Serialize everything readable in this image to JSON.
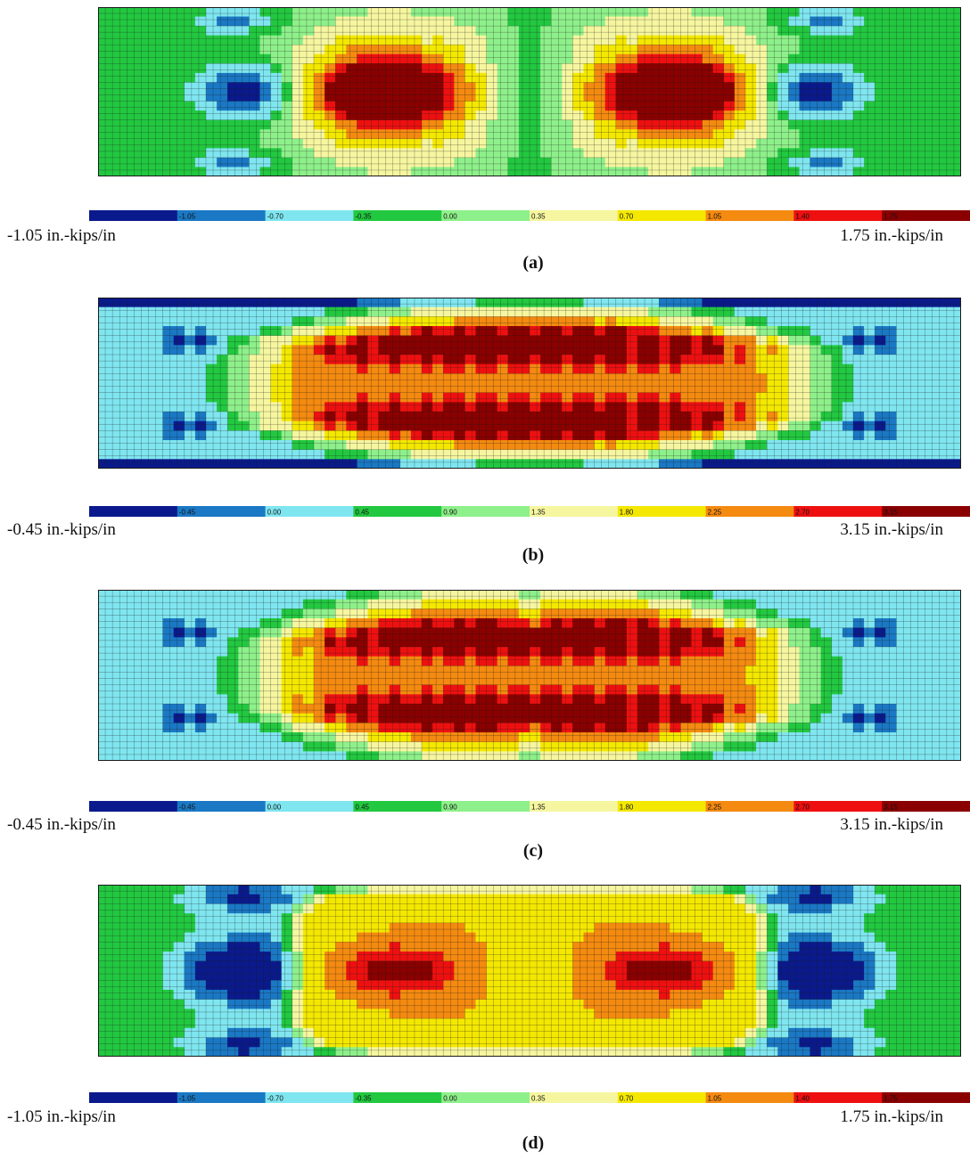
{
  "palette": [
    "#0a1a8c",
    "#1a78c4",
    "#7fe6f0",
    "#22c840",
    "#8ef08a",
    "#f6f6a0",
    "#f4e800",
    "#f48a10",
    "#ee1010",
    "#8a0000"
  ],
  "grid_color": "#1a1a1a",
  "chart_data": [
    {
      "type": "heatmap",
      "panel_label": "(a)",
      "colorbar_ticks": [
        "-1.05",
        "-0.70",
        "-0.35",
        "0.00",
        "0.35",
        "0.70",
        "1.05",
        "1.40",
        "1.75"
      ],
      "range_min_label": "-1.05 in.-kips/in",
      "range_max_label": "1.75 in.-kips/in",
      "vmin": -1.05,
      "vmax": 1.75,
      "pattern": "a"
    },
    {
      "type": "heatmap",
      "panel_label": "(b)",
      "colorbar_ticks": [
        "-0.45",
        "0.00",
        "0.45",
        "0.90",
        "1.35",
        "1.80",
        "2.25",
        "2.70",
        "3.15"
      ],
      "range_min_label": "-0.45 in.-kips/in",
      "range_max_label": "3.15 in.-kips/in",
      "vmin": -0.45,
      "vmax": 3.15,
      "pattern": "b"
    },
    {
      "type": "heatmap",
      "panel_label": "(c)",
      "colorbar_ticks": [
        "-0.45",
        "0.00",
        "0.45",
        "0.90",
        "1.35",
        "1.80",
        "2.25",
        "2.70",
        "3.15"
      ],
      "range_min_label": "-0.45 in.-kips/in",
      "range_max_label": "3.15 in.-kips/in",
      "vmin": -0.45,
      "vmax": 3.15,
      "pattern": "c"
    },
    {
      "type": "heatmap",
      "panel_label": "(d)",
      "colorbar_ticks": [
        "-1.05",
        "-0.70",
        "-0.35",
        "0.00",
        "0.35",
        "0.70",
        "1.05",
        "1.40",
        "1.75"
      ],
      "range_min_label": "-1.05 in.-kips/in",
      "range_max_label": "1.75 in.-kips/in",
      "vmin": -1.05,
      "vmax": 1.75,
      "pattern": "d"
    }
  ]
}
